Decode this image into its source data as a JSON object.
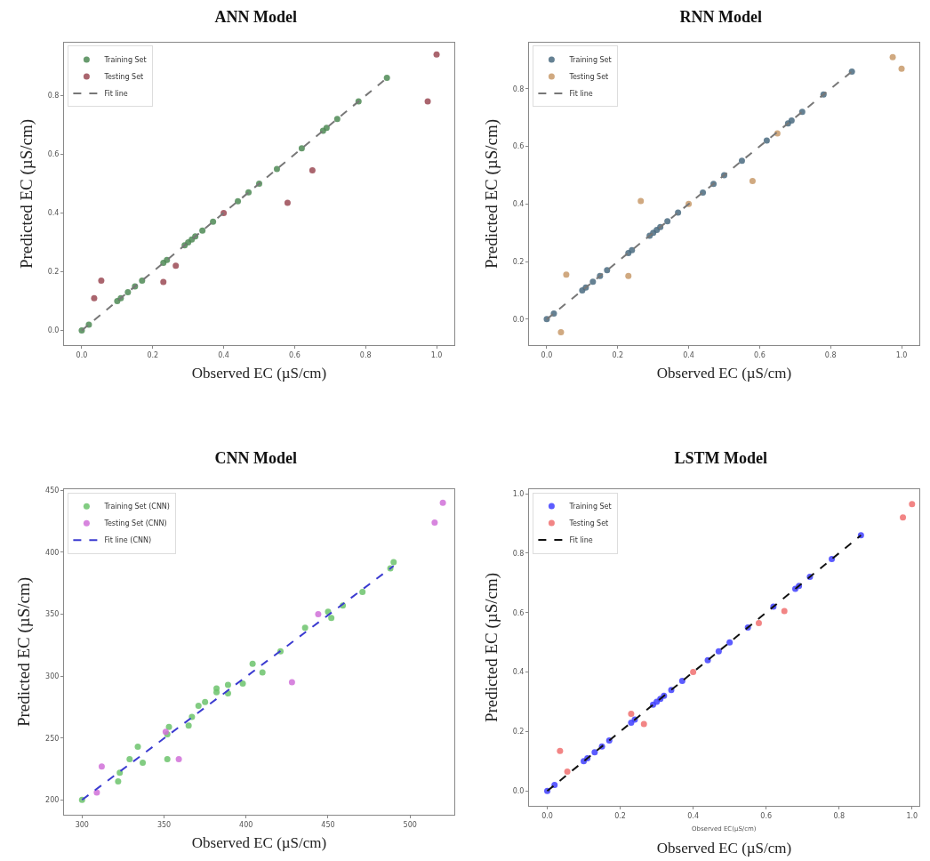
{
  "chart_data": [
    {
      "type": "scatter",
      "title": "ANN Model",
      "xlabel": "Observed EC (µS/cm)",
      "ylabel": "Predicted EC (µS/cm)",
      "legend": "top left",
      "grid": false,
      "xlim": [
        -0.05,
        1.05
      ],
      "ylim": [
        -0.05,
        0.98
      ],
      "xticks": [
        {
          "value": 0,
          "label": "0.0"
        },
        {
          "value": 0.2,
          "label": "0.2"
        },
        {
          "value": 0.4,
          "label": "0.4"
        },
        {
          "value": 0.6,
          "label": "0.6"
        },
        {
          "value": 0.8,
          "label": "0.8"
        },
        {
          "value": 1,
          "label": "1.0"
        }
      ],
      "yticks": [
        {
          "value": 0,
          "label": "0.0"
        },
        {
          "value": 0.2,
          "label": "0.2"
        },
        {
          "value": 0.4,
          "label": "0.4"
        },
        {
          "value": 0.6,
          "label": "0.6"
        },
        {
          "value": 0.8,
          "label": "0.8"
        }
      ],
      "series": [
        {
          "name": "Training Set",
          "marker": "circle",
          "color": "#4e8a55",
          "x": [
            0,
            0.02,
            0.1,
            0.11,
            0.13,
            0.15,
            0.17,
            0.23,
            0.24,
            0.29,
            0.3,
            0.31,
            0.32,
            0.34,
            0.37,
            0.4,
            0.44,
            0.47,
            0.5,
            0.55,
            0.62,
            0.68,
            0.69,
            0.72,
            0.78,
            0.86
          ],
          "values": [
            0,
            0.02,
            0.1,
            0.11,
            0.13,
            0.15,
            0.17,
            0.23,
            0.24,
            0.29,
            0.3,
            0.31,
            0.32,
            0.34,
            0.37,
            null,
            0.44,
            0.47,
            0.5,
            0.55,
            0.62,
            0.68,
            0.69,
            0.72,
            0.78,
            0.86
          ]
        },
        {
          "name": "Testing Set",
          "marker": "circle",
          "color": "#9b4a55",
          "x": [
            0.035,
            0.055,
            0.23,
            0.265,
            0.4,
            0.58,
            0.65,
            0.975,
            1.0
          ],
          "values": [
            0.11,
            0.17,
            0.165,
            0.22,
            0.4,
            0.435,
            0.545,
            0.78,
            0.94
          ]
        },
        {
          "name": "Fit line",
          "type": "line",
          "marker": "none",
          "line_style": "dashed",
          "color": "#777777",
          "x": [
            0,
            0.86
          ],
          "values": [
            0,
            0.86
          ]
        }
      ]
    },
    {
      "type": "scatter",
      "title": "RNN Model",
      "xlabel": "Observed EC (µS/cm)",
      "ylabel": "Predicted EC (µS/cm)",
      "legend": "top left",
      "grid": false,
      "xlim": [
        -0.05,
        1.05
      ],
      "ylim": [
        -0.09,
        0.96
      ],
      "xticks": [
        {
          "value": 0,
          "label": "0.0"
        },
        {
          "value": 0.2,
          "label": "0.2"
        },
        {
          "value": 0.4,
          "label": "0.4"
        },
        {
          "value": 0.6,
          "label": "0.6"
        },
        {
          "value": 0.8,
          "label": "0.8"
        },
        {
          "value": 1,
          "label": "1.0"
        }
      ],
      "yticks": [
        {
          "value": 0,
          "label": "0.0"
        },
        {
          "value": 0.2,
          "label": "0.2"
        },
        {
          "value": 0.4,
          "label": "0.4"
        },
        {
          "value": 0.6,
          "label": "0.6"
        },
        {
          "value": 0.8,
          "label": "0.8"
        }
      ],
      "series": [
        {
          "name": "Training Set",
          "marker": "circle",
          "color": "#4a6b80",
          "x": [
            0,
            0.02,
            0.1,
            0.11,
            0.13,
            0.15,
            0.17,
            0.23,
            0.24,
            0.29,
            0.3,
            0.31,
            0.32,
            0.34,
            0.37,
            0.4,
            0.44,
            0.47,
            0.5,
            0.55,
            0.62,
            0.68,
            0.69,
            0.72,
            0.78,
            0.86
          ],
          "values": [
            0,
            0.02,
            0.1,
            0.11,
            0.13,
            0.15,
            0.17,
            0.23,
            0.24,
            0.29,
            0.3,
            0.31,
            0.32,
            0.34,
            0.37,
            null,
            0.44,
            0.47,
            0.5,
            0.55,
            0.62,
            0.68,
            0.69,
            0.72,
            0.78,
            0.86
          ]
        },
        {
          "name": "Testing Set",
          "marker": "circle",
          "color": "#c89a6a",
          "x": [
            0.04,
            0.055,
            0.23,
            0.265,
            0.4,
            0.58,
            0.65,
            0.975,
            1.0
          ],
          "values": [
            -0.045,
            0.155,
            0.15,
            0.41,
            0.4,
            0.48,
            0.645,
            0.91,
            0.87
          ]
        },
        {
          "name": "Fit line",
          "type": "line",
          "marker": "none",
          "line_style": "dashed",
          "color": "#777777",
          "x": [
            0,
            0.86
          ],
          "values": [
            0,
            0.86
          ]
        }
      ]
    },
    {
      "type": "scatter",
      "title": "CNN Model",
      "xlabel": "Observed EC (µS/cm)",
      "ylabel": "Predicted EC (µS/cm)",
      "legend": "top left",
      "grid": false,
      "xlim": [
        289,
        527
      ],
      "ylim": [
        188,
        451
      ],
      "xticks": [
        300,
        350,
        400,
        450,
        500
      ],
      "yticks": [
        200,
        250,
        300,
        350,
        400,
        450
      ],
      "series": [
        {
          "name": "Training Set (CNN)",
          "marker": "circle",
          "color": "#6cc36c",
          "x": [
            300,
            322,
            323,
            329,
            334,
            337,
            352,
            352,
            353,
            365,
            367,
            371,
            375,
            382,
            382,
            389,
            389,
            398,
            404,
            410,
            421,
            436,
            450,
            452,
            459,
            471,
            488,
            490
          ],
          "values": [
            200,
            215,
            222,
            233,
            243,
            230,
            233,
            253,
            259,
            260,
            267,
            276,
            279,
            290,
            287,
            286,
            293,
            294,
            310,
            303,
            320,
            339,
            352,
            347,
            357,
            368,
            387,
            392
          ]
        },
        {
          "name": "Testing Set (CNN)",
          "marker": "circle",
          "color": "#d070d8",
          "x": [
            309,
            312,
            351,
            359,
            428,
            444,
            515,
            520
          ],
          "values": [
            206,
            227,
            255,
            233,
            295,
            350,
            424,
            440
          ]
        },
        {
          "name": "Fit line (CNN)",
          "type": "line",
          "marker": "none",
          "line_style": "dashed",
          "color": "#3b3bd0",
          "x": [
            300,
            490
          ],
          "values": [
            200,
            389
          ]
        }
      ]
    },
    {
      "type": "scatter",
      "title": "LSTM Model",
      "xlabel": "Observed EC (µS/cm)",
      "ylabel": "Predicted EC (µS/cm)",
      "annotations": [
        "Observed EC(µS/cm)"
      ],
      "legend": "top left",
      "grid": false,
      "xlim": [
        -0.05,
        1.02
      ],
      "ylim": [
        -0.05,
        1.015
      ],
      "xticks": [
        {
          "value": 0,
          "label": "0.0"
        },
        {
          "value": 0.2,
          "label": "0.2"
        },
        {
          "value": 0.4,
          "label": "0.4"
        },
        {
          "value": 0.6,
          "label": "0.6"
        },
        {
          "value": 0.8,
          "label": "0.8"
        },
        {
          "value": 1,
          "label": "1.0"
        }
      ],
      "yticks": [
        {
          "value": 0,
          "label": "0.0"
        },
        {
          "value": 0.2,
          "label": "0.2"
        },
        {
          "value": 0.4,
          "label": "0.4"
        },
        {
          "value": 0.6,
          "label": "0.6"
        },
        {
          "value": 0.8,
          "label": "0.8"
        },
        {
          "value": 1,
          "label": "1.0"
        }
      ],
      "series": [
        {
          "name": "Training Set",
          "marker": "circle",
          "color": "#4040ff",
          "x": [
            0,
            0.02,
            0.1,
            0.11,
            0.13,
            0.15,
            0.17,
            0.23,
            0.24,
            0.29,
            0.3,
            0.31,
            0.32,
            0.34,
            0.37,
            0.4,
            0.44,
            0.47,
            0.5,
            0.55,
            0.62,
            0.68,
            0.69,
            0.72,
            0.78,
            0.86
          ],
          "values": [
            0,
            0.02,
            0.1,
            0.11,
            0.13,
            0.15,
            0.17,
            0.23,
            0.24,
            0.29,
            0.3,
            0.31,
            0.32,
            0.34,
            0.37,
            null,
            0.44,
            0.47,
            0.5,
            0.55,
            0.62,
            0.68,
            0.69,
            0.72,
            0.78,
            0.86
          ]
        },
        {
          "name": "Testing Set",
          "marker": "circle",
          "color": "#f07070",
          "x": [
            0.035,
            0.055,
            0.23,
            0.265,
            0.4,
            0.58,
            0.65,
            0.975,
            1.0
          ],
          "values": [
            0.135,
            0.065,
            0.26,
            0.225,
            0.4,
            0.565,
            0.605,
            0.92,
            0.965
          ]
        },
        {
          "name": "Fit line",
          "type": "line",
          "marker": "none",
          "line_style": "dashed",
          "color": "#111111",
          "x": [
            0,
            0.86
          ],
          "values": [
            0,
            0.86
          ]
        }
      ]
    }
  ]
}
